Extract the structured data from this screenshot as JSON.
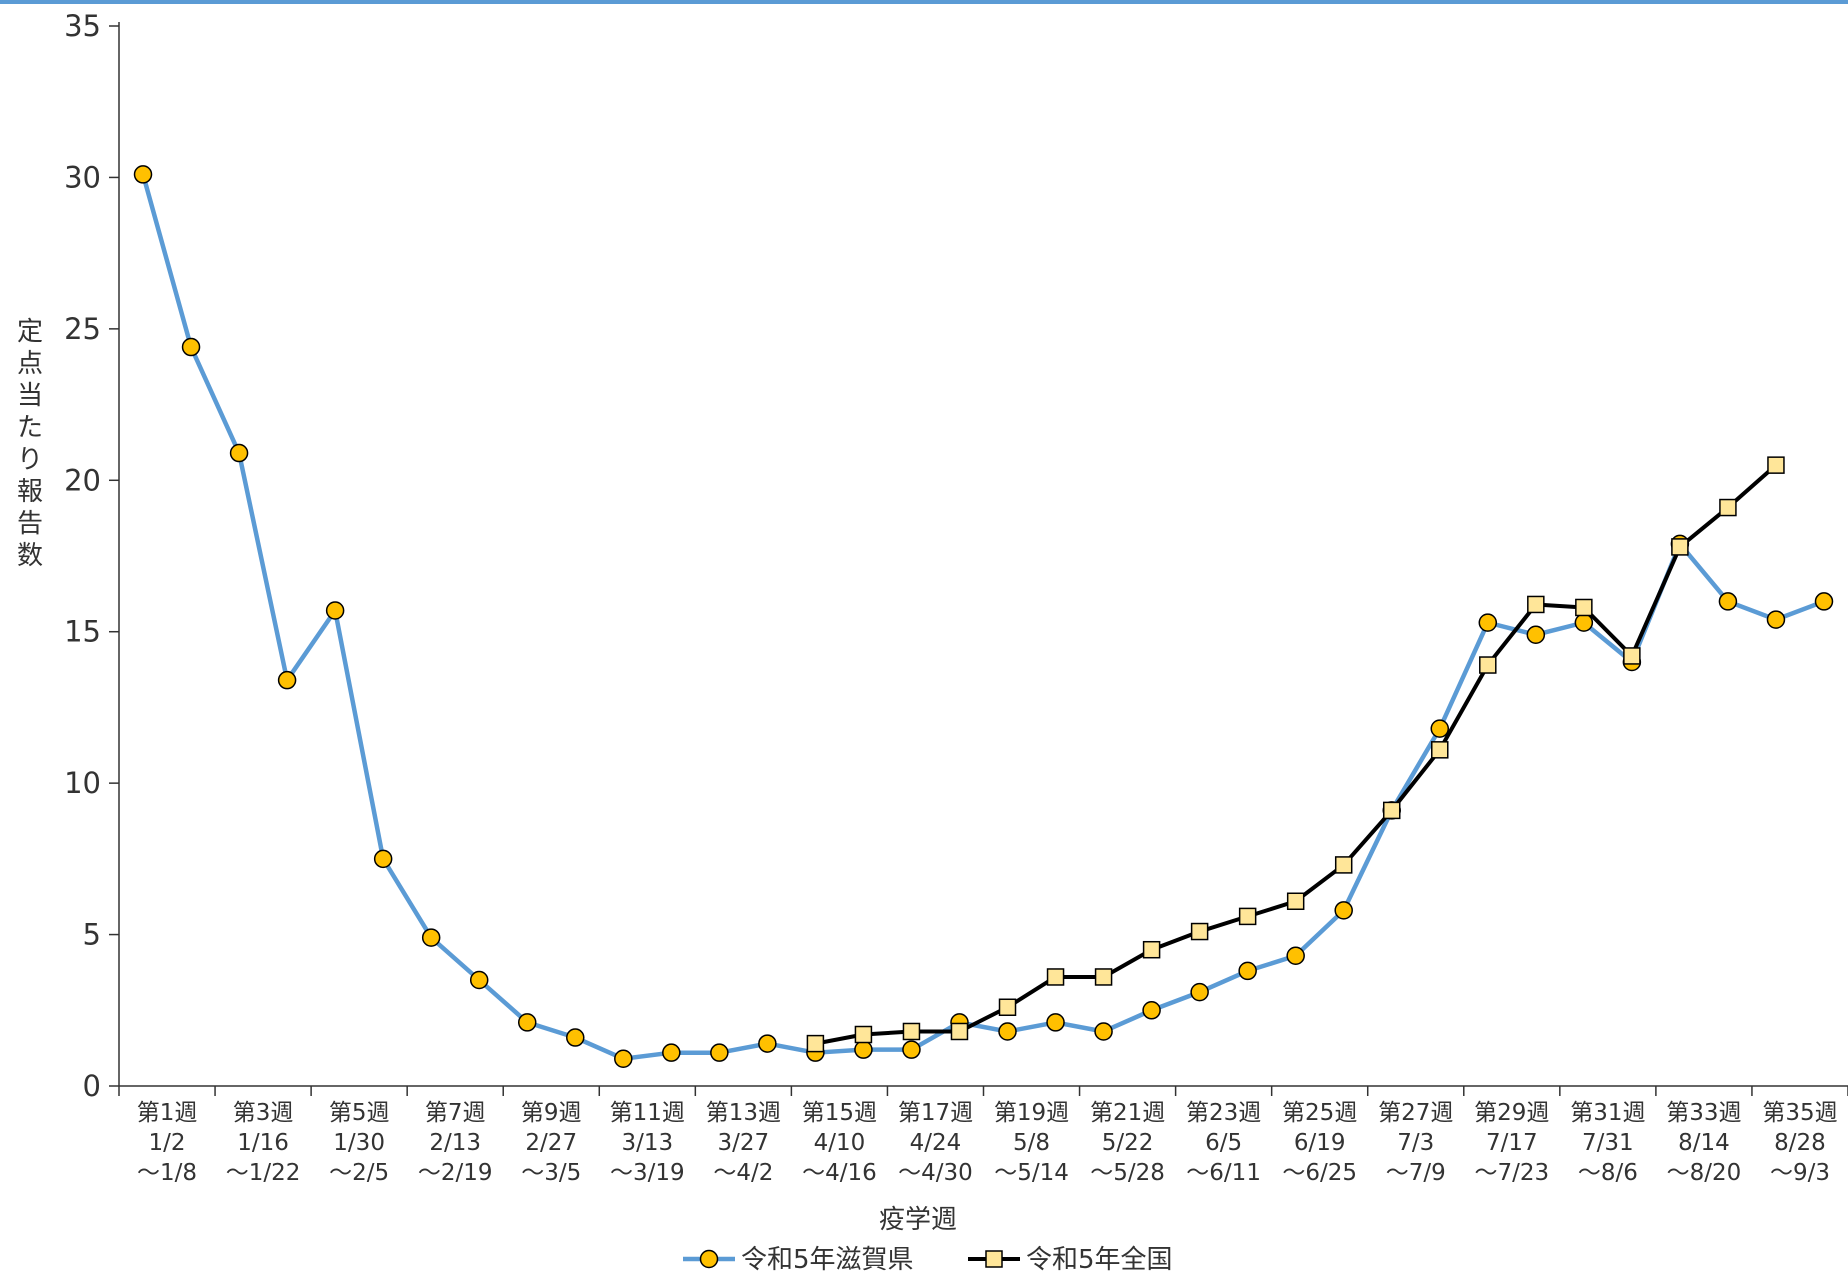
{
  "chart_data": {
    "type": "line",
    "title": "",
    "xlabel": "疫学週",
    "ylabel": "定点当たり報告数",
    "ylim": [
      0,
      35
    ],
    "yticks": [
      0,
      5,
      10,
      15,
      20,
      25,
      30,
      35
    ],
    "grid": false,
    "legend_position": "bottom",
    "x_labels": [
      {
        "week": "第1週",
        "from": "1/2",
        "to": "～1/8"
      },
      {
        "week": "第3週",
        "from": "1/16",
        "to": "～1/22"
      },
      {
        "week": "第5週",
        "from": "1/30",
        "to": "～2/5"
      },
      {
        "week": "第7週",
        "from": "2/13",
        "to": "～2/19"
      },
      {
        "week": "第9週",
        "from": "2/27",
        "to": "～3/5"
      },
      {
        "week": "第11週",
        "from": "3/13",
        "to": "～3/19"
      },
      {
        "week": "第13週",
        "from": "3/27",
        "to": "～4/2"
      },
      {
        "week": "第15週",
        "from": "4/10",
        "to": "～4/16"
      },
      {
        "week": "第17週",
        "from": "4/24",
        "to": "～4/30"
      },
      {
        "week": "第19週",
        "from": "5/8",
        "to": "～5/14"
      },
      {
        "week": "第21週",
        "from": "5/22",
        "to": "～5/28"
      },
      {
        "week": "第23週",
        "from": "6/5",
        "to": "～6/11"
      },
      {
        "week": "第25週",
        "from": "6/19",
        "to": "～6/25"
      },
      {
        "week": "第27週",
        "from": "7/3",
        "to": "～7/9"
      },
      {
        "week": "第29週",
        "from": "7/17",
        "to": "～7/23"
      },
      {
        "week": "第31週",
        "from": "7/31",
        "to": "～8/6"
      },
      {
        "week": "第33週",
        "from": "8/14",
        "to": "～8/20"
      },
      {
        "week": "第35週",
        "from": "8/28",
        "to": "～9/3"
      }
    ],
    "x": [
      1,
      2,
      3,
      4,
      5,
      6,
      7,
      8,
      9,
      10,
      11,
      12,
      13,
      14,
      15,
      16,
      17,
      18,
      19,
      20,
      21,
      22,
      23,
      24,
      25,
      26,
      27,
      28,
      29,
      30,
      31,
      32,
      33,
      34,
      35,
      36
    ],
    "series": [
      {
        "name": "令和5年滋賀県",
        "color": "#5b9bd5",
        "marker": "circle",
        "marker_fill": "#ffc000",
        "values": [
          30.1,
          24.4,
          20.9,
          13.4,
          15.7,
          7.5,
          4.9,
          3.5,
          2.1,
          1.6,
          0.9,
          1.1,
          1.1,
          1.4,
          1.1,
          1.2,
          1.2,
          2.1,
          1.8,
          2.1,
          1.8,
          2.5,
          3.1,
          3.8,
          4.3,
          5.8,
          9.1,
          11.8,
          15.3,
          14.9,
          15.3,
          14.0,
          17.9,
          16.0,
          15.4,
          16.0
        ]
      },
      {
        "name": "令和5年全国",
        "color": "#000000",
        "marker": "square",
        "marker_fill": "#ffe699",
        "values": [
          null,
          null,
          null,
          null,
          null,
          null,
          null,
          null,
          null,
          null,
          null,
          null,
          null,
          null,
          1.4,
          1.7,
          1.8,
          1.8,
          2.6,
          3.6,
          3.6,
          4.5,
          5.1,
          5.6,
          6.1,
          7.3,
          9.1,
          11.1,
          13.9,
          15.9,
          15.8,
          14.2,
          17.8,
          19.1,
          20.5,
          null
        ]
      }
    ]
  }
}
